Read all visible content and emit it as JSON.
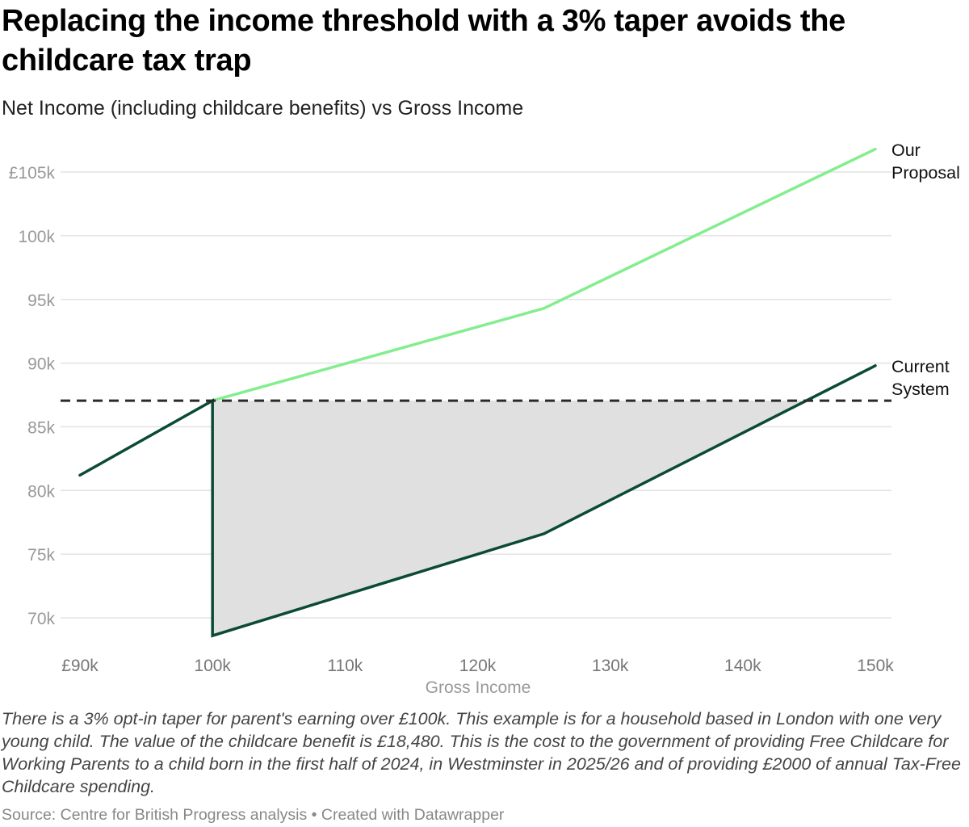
{
  "title": "Replacing the income threshold with a 3% taper avoids the childcare tax trap",
  "subtitle": "Net Income (including childcare benefits) vs Gross Income",
  "chart_data": {
    "type": "line",
    "xlabel": "Gross Income",
    "ylabel": "",
    "xlim": [
      90,
      150
    ],
    "ylim": [
      70,
      107
    ],
    "x_ticks": [
      90,
      100,
      110,
      120,
      130,
      140,
      150
    ],
    "x_tick_labels": [
      "£90k",
      "100k",
      "110k",
      "120k",
      "130k",
      "140k",
      "150k"
    ],
    "y_ticks": [
      70,
      75,
      80,
      85,
      90,
      95,
      100,
      105
    ],
    "y_tick_labels": [
      "70k",
      "75k",
      "80k",
      "85k",
      "90k",
      "95k",
      "100k",
      "£105k"
    ],
    "grid": "horizontal",
    "reference_line": {
      "y": 87.05,
      "style": "dashed"
    },
    "series": [
      {
        "name": "Current System",
        "color": "#0b4a36",
        "points": [
          [
            90,
            81.2
          ],
          [
            100,
            87.05
          ],
          [
            100,
            68.6
          ],
          [
            125,
            76.6
          ],
          [
            150,
            89.8
          ]
        ]
      },
      {
        "name": "Our Proposal",
        "color": "#82ee8e",
        "points": [
          [
            100,
            87.05
          ],
          [
            125,
            94.3
          ],
          [
            150,
            106.8
          ]
        ]
      }
    ],
    "shaded_area": {
      "description_color": "#dfe0df",
      "between": "reference_line and Current System"
    },
    "labels": {
      "proposal": [
        "Our",
        "Proposal"
      ],
      "current": [
        "Current",
        "System"
      ]
    }
  },
  "note": "There is a 3% opt-in taper for parent's earning over £100k. This example is for a household based in London with one very young child. The value of the childcare benefit is £18,480. This is the cost to the government of providing Free Childcare for Working Parents to a child born in the first half of 2024, in Westminster in 2025/26 and of providing £2000 of annual Tax-Free Childcare spending.",
  "source": "Source: Centre for British Progress analysis • Created with Datawrapper"
}
